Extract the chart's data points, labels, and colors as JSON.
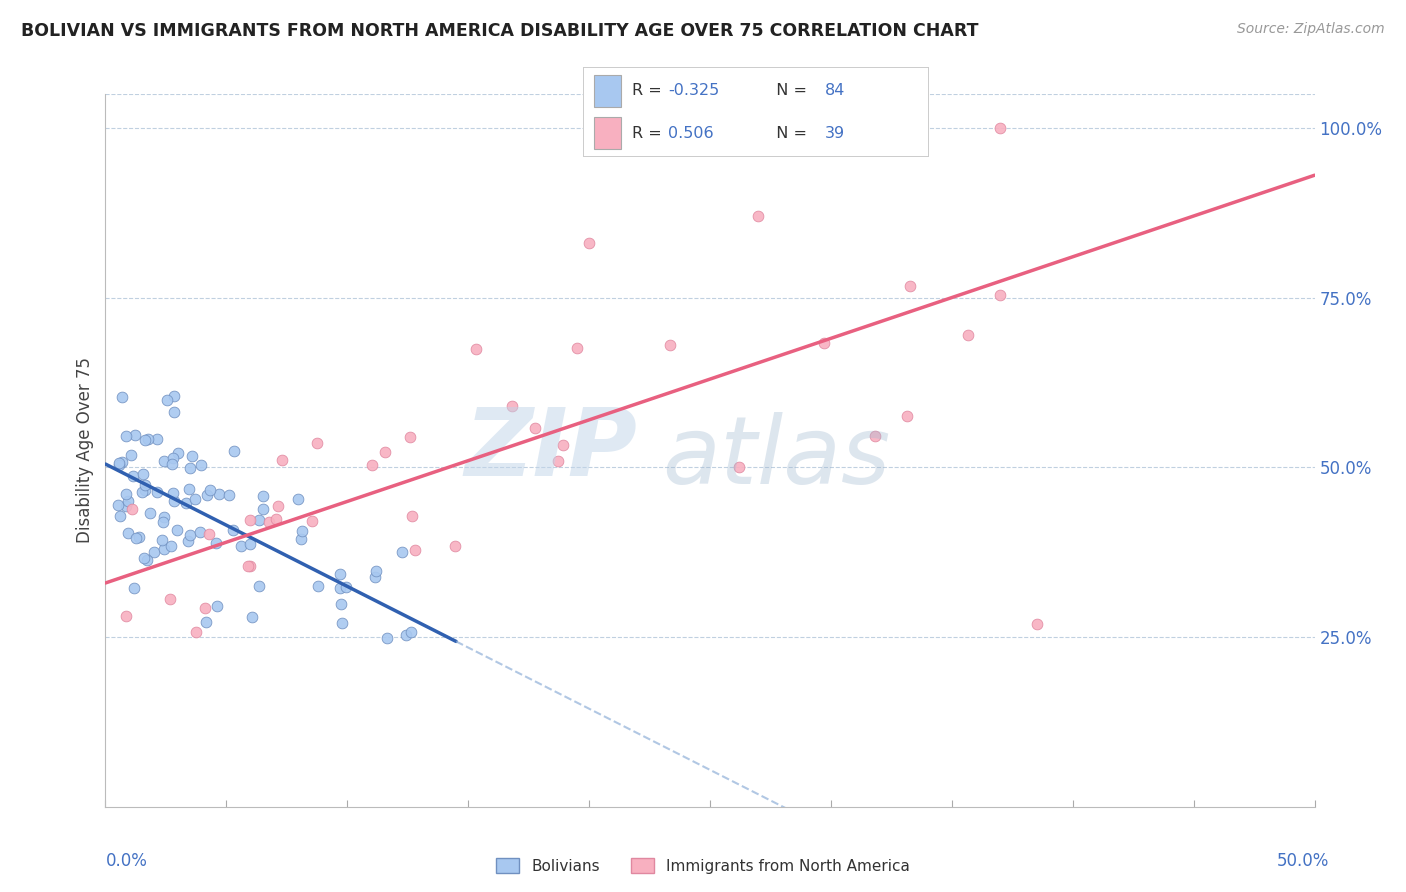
{
  "title": "BOLIVIAN VS IMMIGRANTS FROM NORTH AMERICA DISABILITY AGE OVER 75 CORRELATION CHART",
  "source": "Source: ZipAtlas.com",
  "xlabel_bottom_left": "0.0%",
  "xlabel_bottom_right": "50.0%",
  "ylabel": "Disability Age Over 75",
  "xmin": 0.0,
  "xmax": 0.5,
  "ymin": 0.0,
  "ymax": 1.05,
  "yticks": [
    0.25,
    0.5,
    0.75,
    1.0
  ],
  "ytick_labels": [
    "25.0%",
    "50.0%",
    "75.0%",
    "100.0%"
  ],
  "blue_dot_color": "#a8c8f0",
  "blue_dot_edge": "#7090c0",
  "pink_dot_color": "#f8b0c0",
  "pink_dot_edge": "#e088a0",
  "blue_line_color": "#3060b0",
  "pink_line_color": "#e86080",
  "blue_dash_color": "#90b0d8",
  "grid_color": "#c0d0e0",
  "watermark_zip_color": "#c0d4e8",
  "watermark_atlas_color": "#a0b8d0",
  "legend_r_color": "#4472c4",
  "legend_n_color": "#333333",
  "legend_blue_r": "-0.325",
  "legend_blue_n": "84",
  "legend_pink_r": "0.506",
  "legend_pink_n": "39",
  "blue_line_x_end": 0.145,
  "blue_intercept": 0.505,
  "blue_slope": -1.8,
  "pink_intercept": 0.33,
  "pink_slope": 1.2
}
